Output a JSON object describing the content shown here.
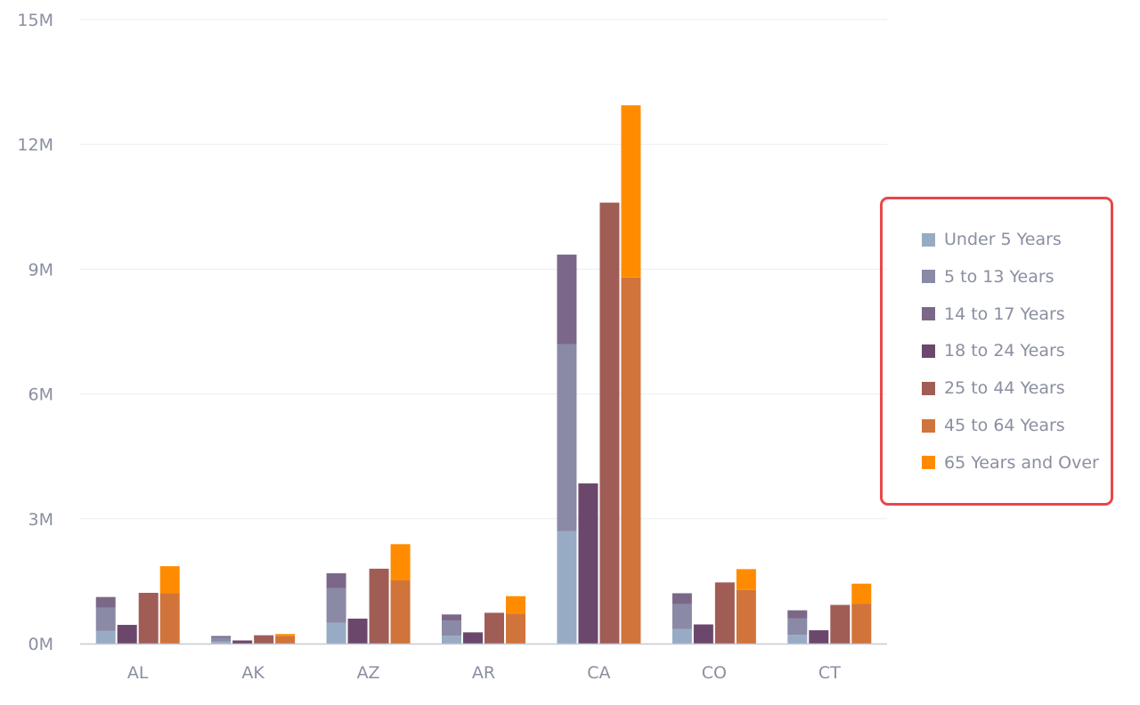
{
  "chart_data": {
    "type": "bar",
    "stacked_groups": true,
    "categories": [
      "AL",
      "AK",
      "AZ",
      "AR",
      "CA",
      "CO",
      "CT"
    ],
    "y_ticks": [
      "0M",
      "3M",
      "6M",
      "9M",
      "12M",
      "15M"
    ],
    "ylim": [
      0,
      15000000
    ],
    "grid": true,
    "legend_position": "right",
    "series": [
      {
        "name": "Under 5 Years",
        "color": "#98abc5",
        "stack": "A",
        "values": [
          310000,
          52000,
          500000,
          190000,
          2700000,
          350000,
          210000
        ]
      },
      {
        "name": "5 to 13 Years",
        "color": "#8a89a6",
        "stack": "A",
        "values": [
          550000,
          90000,
          830000,
          360000,
          4500000,
          600000,
          400000
        ]
      },
      {
        "name": "14 to 17 Years",
        "color": "#7b6888",
        "stack": "A",
        "values": [
          260000,
          40000,
          360000,
          150000,
          2150000,
          260000,
          190000
        ]
      },
      {
        "name": "18 to 24 Years",
        "color": "#6b486b",
        "stack": "B",
        "values": [
          450000,
          75000,
          600000,
          270000,
          3850000,
          460000,
          320000
        ]
      },
      {
        "name": "25 to 44 Years",
        "color": "#a05d56",
        "stack": "C",
        "values": [
          1220000,
          200000,
          1800000,
          740000,
          10600000,
          1470000,
          930000
        ]
      },
      {
        "name": "45 to 64 Years",
        "color": "#d0743c",
        "stack": "D",
        "values": [
          1210000,
          180000,
          1520000,
          720000,
          8800000,
          1290000,
          960000
        ]
      },
      {
        "name": "65 Years and Over",
        "color": "#ff8c00",
        "stack": "D",
        "values": [
          650000,
          50000,
          870000,
          420000,
          4140000,
          500000,
          480000
        ]
      }
    ]
  }
}
